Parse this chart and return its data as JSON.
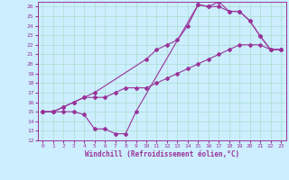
{
  "xlabel": "Windchill (Refroidissement éolien,°C)",
  "bg_color": "#cceeff",
  "line_color": "#993399",
  "grid_color": "#aaddcc",
  "xlim": [
    -0.5,
    23.5
  ],
  "ylim": [
    12,
    26.5
  ],
  "xticks": [
    0,
    1,
    2,
    3,
    4,
    5,
    6,
    7,
    8,
    9,
    10,
    11,
    12,
    13,
    14,
    15,
    16,
    17,
    18,
    19,
    20,
    21,
    22,
    23
  ],
  "yticks": [
    12,
    13,
    14,
    15,
    16,
    17,
    18,
    19,
    20,
    21,
    22,
    23,
    24,
    25,
    26
  ],
  "series1_x": [
    0,
    1,
    2,
    3,
    4,
    5,
    6,
    7,
    8,
    9,
    15,
    16,
    17,
    18,
    19,
    20,
    21,
    22,
    23
  ],
  "series1_y": [
    15,
    15,
    15,
    15,
    14.7,
    13.2,
    13.2,
    12.7,
    12.7,
    15,
    26.2,
    26.0,
    26.0,
    25.5,
    25.5,
    24.5,
    22.9,
    21.5,
    21.5
  ],
  "series2_x": [
    0,
    1,
    2,
    3,
    4,
    5,
    6,
    7,
    8,
    9,
    10,
    11,
    12,
    13,
    14,
    15,
    16,
    17,
    18,
    19,
    20,
    21,
    22,
    23
  ],
  "series2_y": [
    15,
    15,
    15.5,
    16.0,
    16.5,
    16.5,
    16.5,
    17.0,
    17.5,
    17.5,
    17.5,
    18.0,
    18.5,
    19.0,
    19.5,
    20.0,
    20.5,
    21.0,
    21.5,
    22.0,
    22.0,
    22.0,
    21.5,
    21.5
  ],
  "series3_x": [
    0,
    1,
    2,
    3,
    4,
    5,
    10,
    11,
    12,
    13,
    14,
    15,
    16,
    17,
    18,
    19,
    20,
    21,
    22,
    23
  ],
  "series3_y": [
    15,
    15,
    15.5,
    16.0,
    16.5,
    17.0,
    20.5,
    21.5,
    22.0,
    22.5,
    24.0,
    26.2,
    26.0,
    26.5,
    25.5,
    25.5,
    24.5,
    22.9,
    21.5,
    21.5
  ]
}
